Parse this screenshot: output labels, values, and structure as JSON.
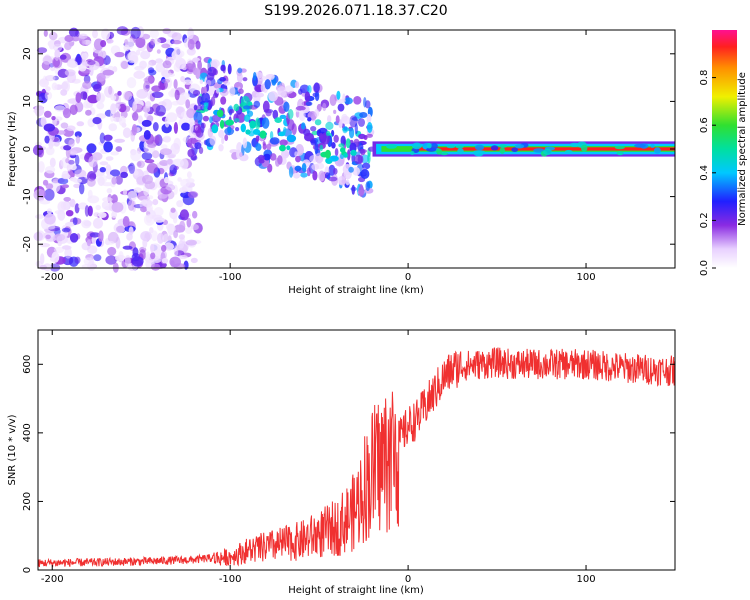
{
  "title": "S199.2026.071.18.37.C20",
  "colors": {
    "snr_line": "#f03030",
    "axis": "#000000",
    "background": "#ffffff"
  },
  "chart_data": [
    {
      "type": "heatmap",
      "xlabel": "Height of straight line (km)",
      "ylabel": "Frequency (Hz)",
      "xlim": [
        -208,
        150
      ],
      "ylim": [
        -25,
        25
      ],
      "x_ticks": [
        -200,
        -100,
        0,
        100
      ],
      "x_tick_labels": [
        "-200",
        "-100",
        "0",
        "100"
      ],
      "y_ticks": [
        -20,
        -10,
        0,
        10,
        20
      ],
      "y_tick_labels": [
        "-20",
        "-10",
        "0",
        "10",
        "20"
      ],
      "colorbar": {
        "label": "Normalized spectral amplitude",
        "range": [
          0,
          1
        ],
        "ticks": [
          0.0,
          0.2,
          0.4,
          0.6,
          0.8
        ],
        "tick_labels": [
          "0.0",
          "0.2",
          "0.4",
          "0.6",
          "0.8"
        ],
        "colormap": "rainbow (white-violet-blue-cyan-green-yellow-red-magenta)"
      },
      "description_regions": [
        {
          "x_range": [
            -208,
            -120
          ],
          "f_center": 0,
          "f_spread": 25,
          "amplitude": 0.15
        },
        {
          "x_range": [
            -120,
            -20
          ],
          "f_center_start": 10,
          "f_center_end": 0,
          "amplitude": 0.35
        },
        {
          "x_range": [
            -20,
            150
          ],
          "f_center": 0,
          "f_spread": 1,
          "amplitude": 0.95
        }
      ]
    },
    {
      "type": "line",
      "xlabel": "Height of straight line (km)",
      "ylabel": "SNR (10 * v/v)",
      "xlim": [
        -208,
        150
      ],
      "ylim": [
        0,
        700
      ],
      "x_ticks": [
        -200,
        -100,
        0,
        100
      ],
      "x_tick_labels": [
        "-200",
        "-100",
        "0",
        "100"
      ],
      "y_ticks": [
        0,
        200,
        400,
        600
      ],
      "y_tick_labels": [
        "0",
        "200",
        "400",
        "600"
      ],
      "series": [
        {
          "name": "SNR",
          "x": [
            -208,
            -180,
            -150,
            -120,
            -100,
            -90,
            -80,
            -70,
            -60,
            -50,
            -40,
            -30,
            -25,
            -20,
            -15,
            -10,
            -5,
            0,
            5,
            10,
            15,
            20,
            25,
            30,
            40,
            50,
            60,
            80,
            100,
            120,
            150
          ],
          "values": [
            20,
            22,
            25,
            30,
            40,
            60,
            70,
            80,
            90,
            110,
            130,
            180,
            250,
            300,
            330,
            350,
            380,
            420,
            440,
            480,
            520,
            560,
            585,
            595,
            600,
            605,
            600,
            600,
            600,
            590,
            580
          ]
        }
      ]
    }
  ]
}
